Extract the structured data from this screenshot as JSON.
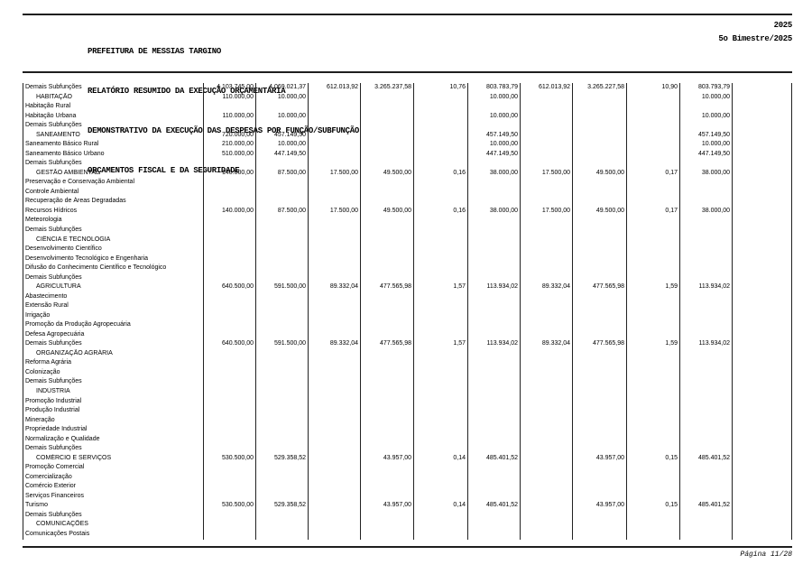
{
  "header": {
    "org": "PREFEITURA DE MESSIAS TARGINO",
    "report": "RELATÓRIO RESUMIDO DA EXECUÇÃO ORÇAMENTÁRIA",
    "statement": "DEMONSTRATIVO DA EXECUÇÃO DAS DESPESAS POR FUNÇÃO/SUBFUNÇÃO",
    "scope": "ORÇAMENTOS FISCAL E DA SEGURIDADE",
    "year": "2025",
    "period": "5o Bimestre/2025"
  },
  "footer": {
    "page_label": "Página 11/28"
  },
  "table": {
    "rows": [
      {
        "label": "Demais Subfunções",
        "indent": false,
        "values": [
          "4.103.745,00",
          "4.069.021,37",
          "612.013,92",
          "3.265.237,58",
          "10,76",
          "803.783,79",
          "612.013,92",
          "3.265.227,58",
          "10,90",
          "803.793,79",
          ""
        ]
      },
      {
        "label": "HABITAÇÃO",
        "indent": true,
        "values": [
          "110.000,00",
          "10.000,00",
          "",
          "",
          "",
          "10.000,00",
          "",
          "",
          "",
          "10.000,00",
          ""
        ]
      },
      {
        "label": "Habitação Rural",
        "indent": false,
        "values": []
      },
      {
        "label": "Habitação Urbana",
        "indent": false,
        "values": [
          "110.000,00",
          "10.000,00",
          "",
          "",
          "",
          "10.000,00",
          "",
          "",
          "",
          "10.000,00",
          ""
        ]
      },
      {
        "label": "Demais Subfunções",
        "indent": false,
        "values": []
      },
      {
        "label": "SANEAMENTO",
        "indent": true,
        "values": [
          "720.000,00",
          "457.149,50",
          "",
          "",
          "",
          "457.149,50",
          "",
          "",
          "",
          "457.149,50",
          ""
        ]
      },
      {
        "label": "Saneamento Básico Rural",
        "indent": false,
        "values": [
          "210.000,00",
          "10.000,00",
          "",
          "",
          "",
          "10.000,00",
          "",
          "",
          "",
          "10.000,00",
          ""
        ]
      },
      {
        "label": "Saneamento Básico Urbano",
        "indent": false,
        "values": [
          "510.000,00",
          "447.149,50",
          "",
          "",
          "",
          "447.149,50",
          "",
          "",
          "",
          "447.149,50",
          ""
        ]
      },
      {
        "label": "Demais Subfunções",
        "indent": false,
        "values": []
      },
      {
        "label": "GESTÃO AMBIENTAL",
        "indent": true,
        "values": [
          "140.000,00",
          "87.500,00",
          "17.500,00",
          "49.500,00",
          "0,16",
          "38.000,00",
          "17.500,00",
          "49.500,00",
          "0,17",
          "38.000,00",
          ""
        ]
      },
      {
        "label": "Preservação e Conservação Ambiental",
        "indent": false,
        "values": []
      },
      {
        "label": "Controle Ambiental",
        "indent": false,
        "values": []
      },
      {
        "label": "Recuperação de Áreas Degradadas",
        "indent": false,
        "values": []
      },
      {
        "label": "Recursos Hídricos",
        "indent": false,
        "values": [
          "140.000,00",
          "87.500,00",
          "17.500,00",
          "49.500,00",
          "0,16",
          "38.000,00",
          "17.500,00",
          "49.500,00",
          "0,17",
          "38.000,00",
          ""
        ]
      },
      {
        "label": "Meteorologia",
        "indent": false,
        "values": []
      },
      {
        "label": "Demais Subfunções",
        "indent": false,
        "values": []
      },
      {
        "label": "CIÊNCIA E TECNOLOGIA",
        "indent": true,
        "values": []
      },
      {
        "label": "Desenvolvimento Científico",
        "indent": false,
        "values": []
      },
      {
        "label": "Desenvolvimento Tecnológico e Engenharia",
        "indent": false,
        "values": []
      },
      {
        "label": "Difusão do Conhecimento Científico e Tecnológico",
        "indent": false,
        "values": []
      },
      {
        "label": "Demais Subfunções",
        "indent": false,
        "values": []
      },
      {
        "label": "AGRICULTURA",
        "indent": true,
        "values": [
          "640.500,00",
          "591.500,00",
          "89.332,04",
          "477.565,98",
          "1,57",
          "113.934,02",
          "89.332,04",
          "477.565,98",
          "1,59",
          "113.934,02",
          ""
        ]
      },
      {
        "label": "Abastecimento",
        "indent": false,
        "values": []
      },
      {
        "label": "Extensão Rural",
        "indent": false,
        "values": []
      },
      {
        "label": "Irrigação",
        "indent": false,
        "values": []
      },
      {
        "label": "Promoção da Produção Agropecuária",
        "indent": false,
        "values": []
      },
      {
        "label": "Defesa Agropecuária",
        "indent": false,
        "values": []
      },
      {
        "label": "Demais Subfunções",
        "indent": false,
        "values": [
          "640.500,00",
          "591.500,00",
          "89.332,04",
          "477.565,98",
          "1,57",
          "113.934,02",
          "89.332,04",
          "477.565,98",
          "1,59",
          "113.934,02",
          ""
        ]
      },
      {
        "label": "ORGANIZAÇÃO AGRÁRIA",
        "indent": true,
        "values": []
      },
      {
        "label": "Reforma Agrária",
        "indent": false,
        "values": []
      },
      {
        "label": "Colonização",
        "indent": false,
        "values": []
      },
      {
        "label": "Demais Subfunções",
        "indent": false,
        "values": []
      },
      {
        "label": "INDÚSTRIA",
        "indent": true,
        "values": []
      },
      {
        "label": "Promoção Industrial",
        "indent": false,
        "values": []
      },
      {
        "label": "Produção Industrial",
        "indent": false,
        "values": []
      },
      {
        "label": "Mineração",
        "indent": false,
        "values": []
      },
      {
        "label": "Propriedade Industrial",
        "indent": false,
        "values": []
      },
      {
        "label": "Normalização e Qualidade",
        "indent": false,
        "values": []
      },
      {
        "label": "Demais Subfunções",
        "indent": false,
        "values": []
      },
      {
        "label": "COMÉRCIO E SERVIÇOS",
        "indent": true,
        "values": [
          "530.500,00",
          "529.358,52",
          "",
          "43.957,00",
          "0,14",
          "485.401,52",
          "",
          "43.957,00",
          "0,15",
          "485.401,52",
          ""
        ]
      },
      {
        "label": "Promoção Comercial",
        "indent": false,
        "values": []
      },
      {
        "label": "Comercialização",
        "indent": false,
        "values": []
      },
      {
        "label": "Comércio Exterior",
        "indent": false,
        "values": []
      },
      {
        "label": "Serviços Financeiros",
        "indent": false,
        "values": []
      },
      {
        "label": "Turismo",
        "indent": false,
        "values": [
          "530.500,00",
          "529.358,52",
          "",
          "43.957,00",
          "0,14",
          "485.401,52",
          "",
          "43.957,00",
          "0,15",
          "485.401,52",
          ""
        ]
      },
      {
        "label": "Demais Subfunções",
        "indent": false,
        "values": []
      },
      {
        "label": "COMUNICAÇÕES",
        "indent": true,
        "values": []
      },
      {
        "label": "Comunicações Postais",
        "indent": false,
        "values": []
      }
    ]
  }
}
